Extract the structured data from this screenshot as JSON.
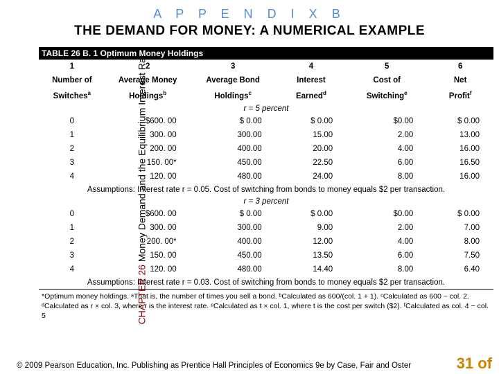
{
  "kicker": "A P P E N D I X   B",
  "title": "THE DEMAND FOR MONEY:  A NUMERICAL EXAMPLE",
  "vertical_label_chapter": "CHAPTER 26",
  "vertical_label_rest": " Money Demand and the Equilibrium Interest Rate",
  "table_title": "TABLE 26 B. 1  Optimum Money Holdings",
  "columns": [
    {
      "num": "1",
      "label": "Number of",
      "sub": "Switches",
      "sup": "a"
    },
    {
      "num": "2",
      "label": "Average Money",
      "sub": "Holdings",
      "sup": "b"
    },
    {
      "num": "3",
      "label": "Average Bond",
      "sub": "Holdings",
      "sup": "c"
    },
    {
      "num": "4",
      "label": "Interest",
      "sub": "Earned",
      "sup": "d"
    },
    {
      "num": "5",
      "label": "Cost of",
      "sub": "Switching",
      "sup": "e"
    },
    {
      "num": "6",
      "label": "Net",
      "sub": "Profit",
      "sup": "f"
    }
  ],
  "section1_label": "r = 5 percent",
  "rows1": [
    {
      "s": "0",
      "h": "$600. 00",
      "b": "$    0.00",
      "i": "$  0.00",
      "c": "$0.00",
      "p": "$  0.00"
    },
    {
      "s": "1",
      "h": "300. 00",
      "b": "300.00",
      "i": "15.00",
      "c": "2.00",
      "p": "13.00"
    },
    {
      "s": "2",
      "h": "200. 00",
      "b": "400.00",
      "i": "20.00",
      "c": "4.00",
      "p": "16.00"
    },
    {
      "s": "3",
      "h": "150. 00*",
      "b": "450.00",
      "i": "22.50",
      "c": "6.00",
      "p": "16.50"
    },
    {
      "s": "4",
      "h": "120. 00",
      "b": "480.00",
      "i": "24.00",
      "c": "8.00",
      "p": "16.00"
    }
  ],
  "assumption1": "Assumptions:  Interest rate r = 0.05.  Cost of switching from bonds to money equals $2 per transaction.",
  "section2_label": "r = 3 percent",
  "rows2": [
    {
      "s": "0",
      "h": "$600. 00",
      "b": "$    0.00",
      "i": "$  0.00",
      "c": "$0.00",
      "p": "$  0.00"
    },
    {
      "s": "1",
      "h": "300. 00",
      "b": "300.00",
      "i": "9.00",
      "c": "2.00",
      "p": "7.00"
    },
    {
      "s": "2",
      "h": "200. 00*",
      "b": "400.00",
      "i": "12.00",
      "c": "4.00",
      "p": "8.00"
    },
    {
      "s": "3",
      "h": "150. 00",
      "b": "450.00",
      "i": "13.50",
      "c": "6.00",
      "p": "7.50"
    },
    {
      "s": "4",
      "h": "120. 00",
      "b": "480.00",
      "i": "14.40",
      "c": "8.00",
      "p": "6.40"
    }
  ],
  "assumption2": "Assumptions:  Interest rate r = 0.03.  Cost of switching from bonds to money equals $2 per transaction.",
  "footnote": "*Optimum money holdings. ᵃThat is, the number of times you sell a bond. ᵇCalculated as 600/(col. 1 + 1). ᶜCalculated as 600 − col. 2. ᵈCalculated as r × col. 3, where r is the interest rate. ᵉCalculated as t × col. 1, where t is the cost per switch ($2). ᶠCalculated as col. 4 − col. 5",
  "copyright": "© 2009 Pearson Education, Inc. Publishing as Prentice Hall   Principles of Economics 9e by Case, Fair and Oster",
  "pagenum": "31 of",
  "colors": {
    "kicker": "#548dd4",
    "pagenum": "#cc8400",
    "chapter": "#8b0000"
  }
}
